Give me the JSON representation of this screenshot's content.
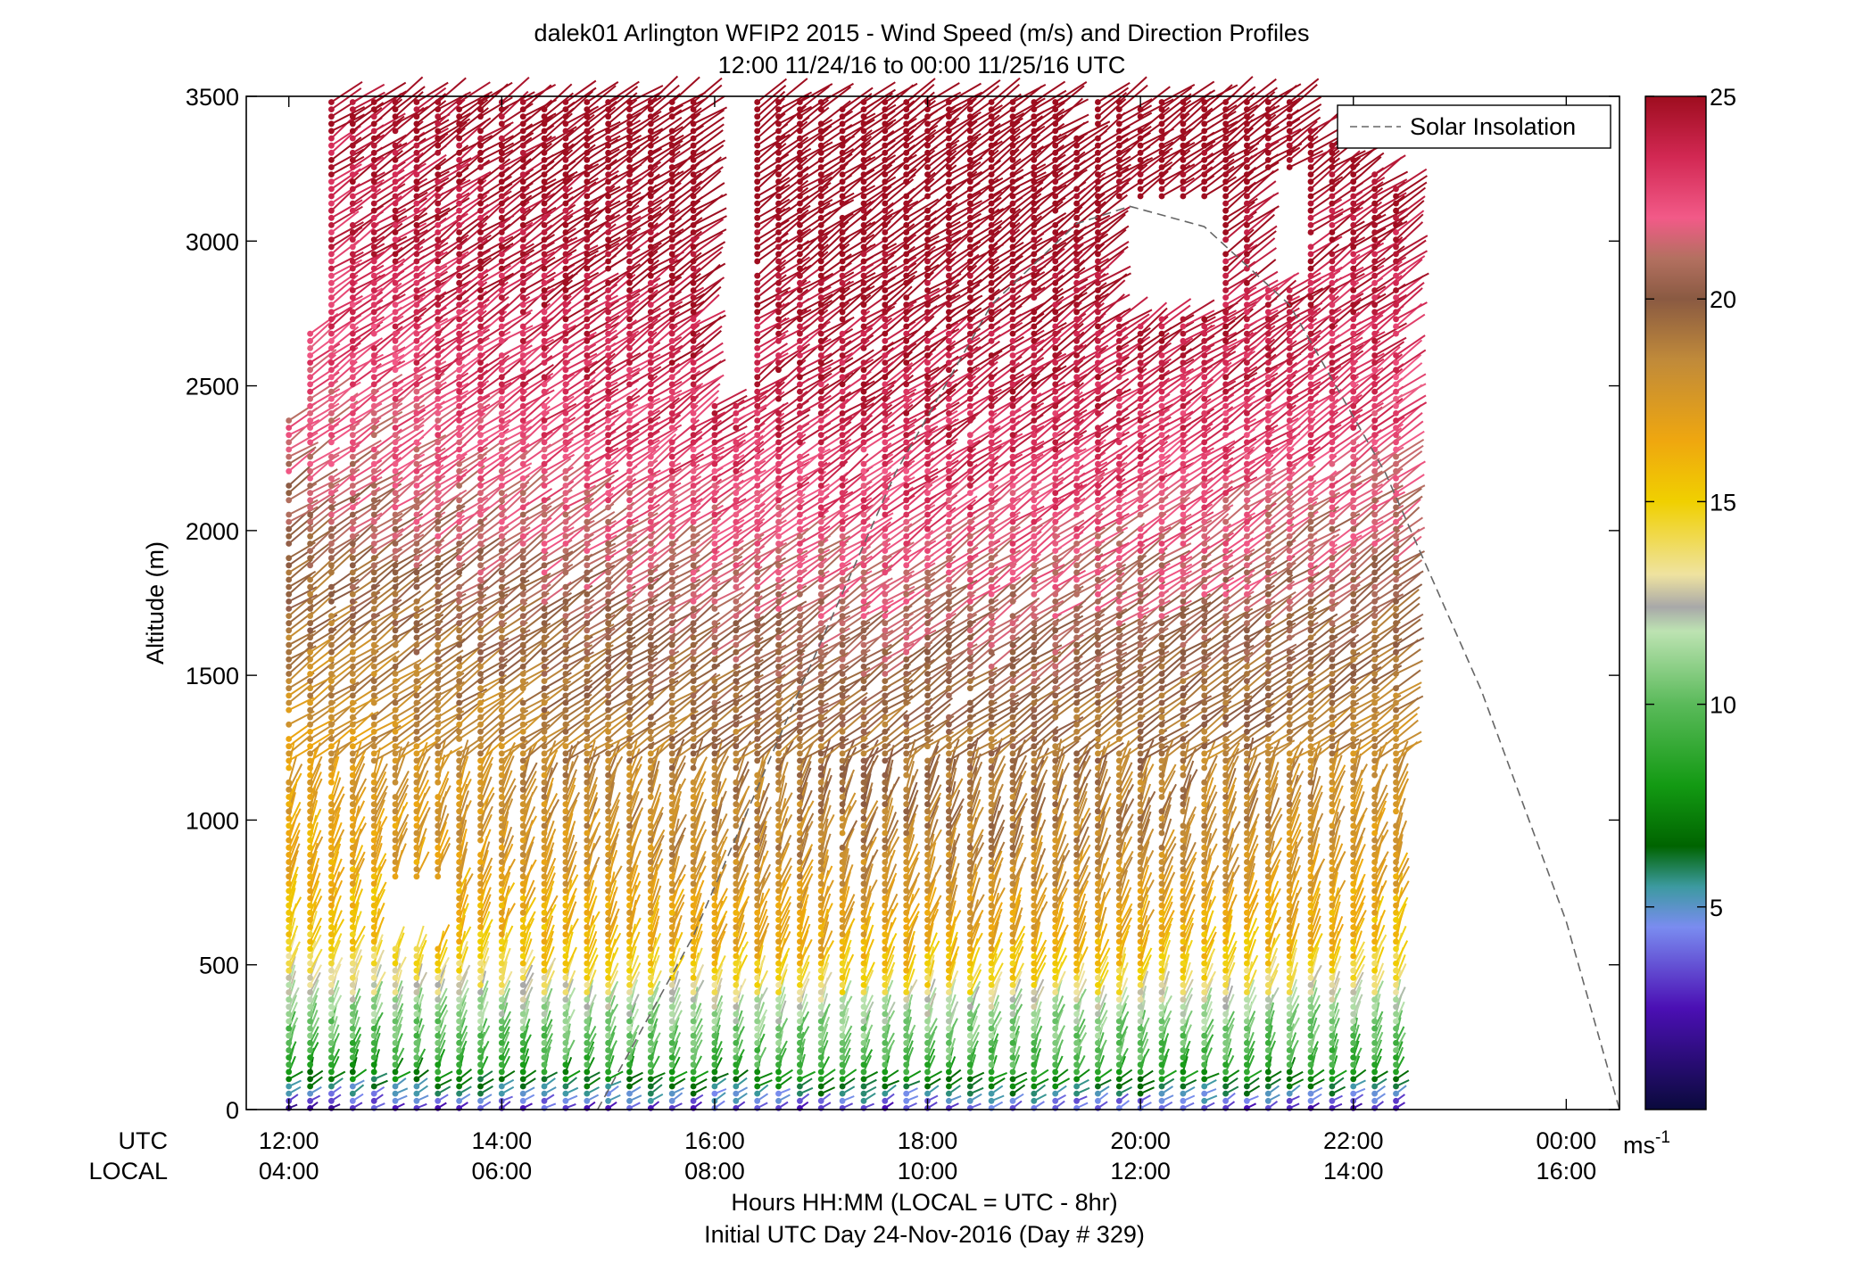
{
  "chart_data": {
    "type": "wind-barb-profile",
    "title": "dalek01 Arlington WFIP2 2015 - Wind Speed (m/s) and Direction Profiles",
    "subtitle": "12:00 11/24/16 to 00:00 11/25/16  UTC",
    "ylabel": "Altitude (m)",
    "xlabel": "Hours HH:MM  (LOCAL = UTC - 8hr)",
    "footer": "Initial UTC Day 24-Nov-2016 (Day # 329)",
    "x_row_labels": [
      "UTC",
      "LOCAL"
    ],
    "ylim": [
      0,
      3500
    ],
    "y_ticks": [
      0,
      500,
      1000,
      1500,
      2000,
      2500,
      3000,
      3500
    ],
    "xlim_hours": [
      11.6,
      24.5
    ],
    "x_ticks_hours": [
      12,
      14,
      16,
      18,
      20,
      22,
      24
    ],
    "x_tick_labels_utc": [
      "12:00",
      "14:00",
      "16:00",
      "18:00",
      "20:00",
      "22:00",
      "00:00"
    ],
    "x_tick_labels_local": [
      "04:00",
      "06:00",
      "08:00",
      "10:00",
      "12:00",
      "14:00",
      "16:00"
    ],
    "grid": false,
    "legend": {
      "position": "top-right",
      "entries": [
        {
          "label": "Solar Insolation",
          "style": "dashed",
          "color": "#777777"
        }
      ]
    },
    "colorbar": {
      "range": [
        0,
        25
      ],
      "ticks": [
        5,
        10,
        15,
        20,
        25
      ],
      "unit_label": "ms",
      "unit_exponent": "-1",
      "stops": [
        {
          "value": 0,
          "color": "#0a0a3c"
        },
        {
          "value": 2.5,
          "color": "#4b0fb4"
        },
        {
          "value": 4.5,
          "color": "#7a8cf0"
        },
        {
          "value": 5.5,
          "color": "#3c9aa0"
        },
        {
          "value": 6.5,
          "color": "#006400"
        },
        {
          "value": 8,
          "color": "#139a13"
        },
        {
          "value": 10,
          "color": "#5aba5a"
        },
        {
          "value": 11.8,
          "color": "#bde3b2"
        },
        {
          "value": 12.4,
          "color": "#a8a8a8"
        },
        {
          "value": 13.2,
          "color": "#efe3a0"
        },
        {
          "value": 15,
          "color": "#f0d000"
        },
        {
          "value": 16.5,
          "color": "#efa70f"
        },
        {
          "value": 18.5,
          "color": "#c08a3a"
        },
        {
          "value": 20,
          "color": "#8a5a42"
        },
        {
          "value": 21,
          "color": "#b37060"
        },
        {
          "value": 22,
          "color": "#f25a88"
        },
        {
          "value": 23.5,
          "color": "#d22853"
        },
        {
          "value": 25,
          "color": "#9e0d1f"
        }
      ]
    },
    "profiles": {
      "time_start_hours": 12.0,
      "time_step_hours": 0.2,
      "time_count": 53,
      "altitude_start_m": 5,
      "altitude_step_m": 25,
      "altitude_max_m": 3480,
      "profile_top_m": [
        2400,
        2700,
        3500,
        3500,
        3500,
        3500,
        3500,
        3500,
        3500,
        3500,
        3500,
        3500,
        3500,
        3500,
        3500,
        3500,
        3500,
        3500,
        3500,
        3500,
        3500,
        3500,
        3500,
        3500,
        3500,
        3500,
        3500,
        3500,
        3500,
        3500,
        3500,
        3500,
        3500,
        3500,
        3500,
        3500,
        3500,
        3500,
        3500,
        3500,
        3500,
        3500,
        3500,
        3500,
        3500,
        3500,
        3500,
        3500,
        3400,
        3350,
        3300,
        3250,
        3200
      ],
      "gaps": [
        {
          "t0": 16.0,
          "t1": 16.25,
          "z0": 2450,
          "z1": 3500
        },
        {
          "t0": 19.25,
          "t1": 19.5,
          "z0": 3380,
          "z1": 3500
        },
        {
          "t0": 19.8,
          "t1": 20.6,
          "z0": 2750,
          "z1": 3150
        },
        {
          "t0": 21.05,
          "t1": 21.45,
          "z0": 2850,
          "z1": 3250
        },
        {
          "t0": 22.6,
          "t1": 23.1,
          "z0": 2700,
          "z1": 3250
        },
        {
          "t0": 13.0,
          "t1": 13.5,
          "z0": 560,
          "z1": 800
        }
      ],
      "low_level_speed_profile_m_s": [
        {
          "z": 0,
          "v": 2.5
        },
        {
          "z": 60,
          "v": 5
        },
        {
          "z": 150,
          "v": 8.5
        },
        {
          "z": 350,
          "v": 11
        },
        {
          "z": 550,
          "v": 14.5
        },
        {
          "z": 850,
          "v": 16.5
        },
        {
          "z": 1300,
          "v": 17.5
        },
        {
          "z": 1800,
          "v": 19.5
        },
        {
          "z": 2300,
          "v": 21.5
        },
        {
          "z": 3000,
          "v": 23.5
        },
        {
          "z": 3500,
          "v": 24.5
        }
      ],
      "direction_deg_lower": 200,
      "direction_deg_upper": 235
    },
    "solar_insolation_curve": [
      {
        "t": 14.9,
        "z": 0
      },
      {
        "t": 15.8,
        "z": 600
      },
      {
        "t": 16.8,
        "z": 1450
      },
      {
        "t": 17.7,
        "z": 2200
      },
      {
        "t": 18.6,
        "z": 2780
      },
      {
        "t": 19.4,
        "z": 3060
      },
      {
        "t": 19.9,
        "z": 3120
      },
      {
        "t": 20.6,
        "z": 3050
      },
      {
        "t": 21.4,
        "z": 2780
      },
      {
        "t": 22.3,
        "z": 2200
      },
      {
        "t": 23.2,
        "z": 1450
      },
      {
        "t": 24.0,
        "z": 650
      },
      {
        "t": 24.5,
        "z": 0
      }
    ]
  }
}
